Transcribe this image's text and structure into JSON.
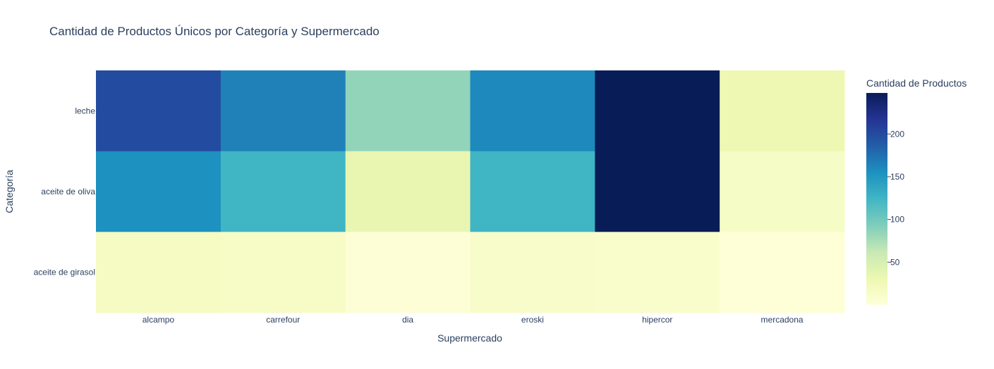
{
  "chart_data": {
    "type": "heatmap",
    "title": "Cantidad de Productos Únicos por Categoría y Supermercado",
    "xlabel": "Supermercado",
    "ylabel": "Categoría",
    "x_categories": [
      "alcampo",
      "carrefour",
      "dia",
      "eroski",
      "hipercor",
      "mercadona"
    ],
    "y_categories": [
      "leche",
      "aceite de oliva",
      "aceite de girasol"
    ],
    "values": [
      [
        200,
        165,
        85,
        160,
        248,
        30
      ],
      [
        155,
        125,
        35,
        125,
        248,
        15
      ],
      [
        18,
        14,
        3,
        12,
        10,
        2
      ]
    ],
    "colorscale_name": "YlGnBu",
    "colorbar": {
      "title": "Cantidad de Productos",
      "range": [
        0,
        248
      ],
      "ticks": [
        50,
        100,
        150,
        200
      ]
    },
    "colorscale": [
      [
        0.0,
        "#ffffd9"
      ],
      [
        0.125,
        "#edf8b1"
      ],
      [
        0.25,
        "#c7e9b4"
      ],
      [
        0.375,
        "#7fcdbb"
      ],
      [
        0.5,
        "#41b6c4"
      ],
      [
        0.625,
        "#1d91c0"
      ],
      [
        0.75,
        "#225ea8"
      ],
      [
        0.875,
        "#253494"
      ],
      [
        1.0,
        "#081d58"
      ]
    ]
  }
}
